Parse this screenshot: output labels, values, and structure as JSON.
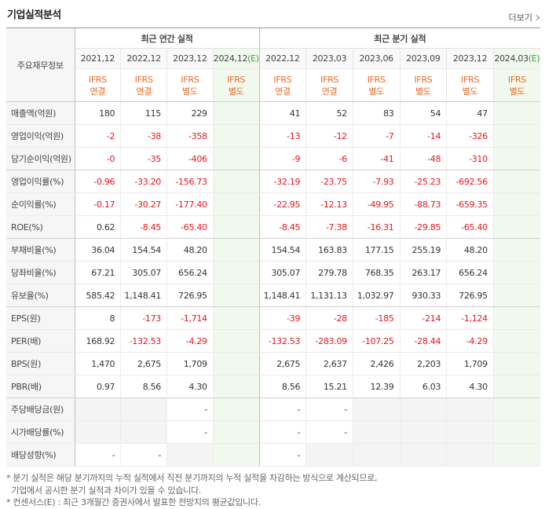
{
  "header": {
    "title": "기업실적분석",
    "more": "더보기"
  },
  "table": {
    "corner": "주요재무정보",
    "groups": [
      {
        "label": "최근 연간 실적"
      },
      {
        "label": "최근 분기 실적"
      }
    ],
    "columns": [
      {
        "date": "2021,12",
        "standard": "IFRS",
        "basis": "연결"
      },
      {
        "date": "2022,12",
        "standard": "IFRS",
        "basis": "연결"
      },
      {
        "date": "2023,12",
        "standard": "IFRS",
        "basis": "별도"
      },
      {
        "date": "2024,12",
        "estimate": "(E)",
        "standard": "IFRS",
        "basis": "별도"
      },
      {
        "date": "2022,12",
        "standard": "IFRS",
        "basis": "연결"
      },
      {
        "date": "2023,03",
        "standard": "IFRS",
        "basis": "연결"
      },
      {
        "date": "2023,06",
        "standard": "IFRS",
        "basis": "별도"
      },
      {
        "date": "2023,09",
        "standard": "IFRS",
        "basis": "별도"
      },
      {
        "date": "2023,12",
        "standard": "IFRS",
        "basis": "별도"
      },
      {
        "date": "2024,03",
        "estimate": "(E)",
        "standard": "IFRS",
        "basis": "별도"
      }
    ],
    "rows": [
      {
        "label": "매출액(억원)",
        "cells": [
          "180",
          "115",
          "229",
          null,
          "41",
          "52",
          "83",
          "54",
          "47",
          null
        ]
      },
      {
        "label": "영업이익(억원)",
        "cells": [
          "-2",
          "-38",
          "-358",
          null,
          "-13",
          "-12",
          "-7",
          "-14",
          "-326",
          null
        ]
      },
      {
        "label": "당기순이익(억원)",
        "cells": [
          "-0",
          "-35",
          "-406",
          null,
          "-9",
          "-6",
          "-41",
          "-48",
          "-310",
          null
        ]
      },
      {
        "label": "영업이익률(%)",
        "cells": [
          "-0.96",
          "-33.20",
          "-156.73",
          null,
          "-32.19",
          "-23.75",
          "-7.93",
          "-25.23",
          "-692.56",
          null
        ]
      },
      {
        "label": "순이익률(%)",
        "cells": [
          "-0.17",
          "-30.27",
          "-177.40",
          null,
          "-22.95",
          "-12.13",
          "-49.95",
          "-88.73",
          "-659.35",
          null
        ]
      },
      {
        "label": "ROE(%)",
        "cells": [
          "0.62",
          "-8.45",
          "-65.40",
          null,
          "-8.45",
          "-7.38",
          "-16.31",
          "-29.85",
          "-65.40",
          null
        ]
      },
      {
        "label": "부채비율(%)",
        "cells": [
          "36.04",
          "154.54",
          "48.20",
          null,
          "154.54",
          "163.83",
          "177.15",
          "255.19",
          "48.20",
          null
        ]
      },
      {
        "label": "당좌비율(%)",
        "cells": [
          "67.21",
          "305.07",
          "656.24",
          null,
          "305.07",
          "279.78",
          "768.35",
          "263.17",
          "656.24",
          null
        ]
      },
      {
        "label": "유보율(%)",
        "cells": [
          "585.42",
          "1,148.41",
          "726.95",
          null,
          "1,148.41",
          "1,131.13",
          "1,032.97",
          "930.33",
          "726.95",
          null
        ]
      },
      {
        "label": "EPS(원)",
        "cells": [
          "8",
          "-173",
          "-1,714",
          null,
          "-39",
          "-28",
          "-185",
          "-214",
          "-1,124",
          null
        ]
      },
      {
        "label": "PER(배)",
        "cells": [
          "168.92",
          "-132.53",
          "-4.29",
          null,
          "-132.53",
          "-283.09",
          "-107.25",
          "-28.44",
          "-4.29",
          null
        ]
      },
      {
        "label": "BPS(원)",
        "cells": [
          "1,470",
          "2,675",
          "1,709",
          null,
          "2,675",
          "2,637",
          "2,426",
          "2,203",
          "1,709",
          null
        ]
      },
      {
        "label": "PBR(배)",
        "cells": [
          "0.97",
          "8.56",
          "4.30",
          null,
          "8.56",
          "15.21",
          "12.39",
          "6.03",
          "4.30",
          null
        ]
      },
      {
        "label": "주당배당금(원)",
        "cells": [
          null,
          null,
          "-",
          null,
          "-",
          "-",
          null,
          null,
          null,
          null
        ]
      },
      {
        "label": "시가배당률(%)",
        "cells": [
          null,
          null,
          "-",
          null,
          "-",
          "-",
          null,
          null,
          null,
          null
        ]
      },
      {
        "label": "배당성향(%)",
        "cells": [
          "-",
          "-",
          null,
          null,
          "-",
          null,
          null,
          null,
          null,
          null
        ]
      }
    ]
  },
  "notes": [
    "* 분기 실적은 해당 분기까지의 누적 실적에서 직전 분기까지의 누적 실적을 차감하는 방식으로 계산되므로,",
    "  기업에서 공시한 분기 실적과 차이가 있을 수 있습니다.",
    "* 컨센서스(E) : 최근 3개월간 증권사에서 발표한 전망치의 평균값입니다."
  ]
}
